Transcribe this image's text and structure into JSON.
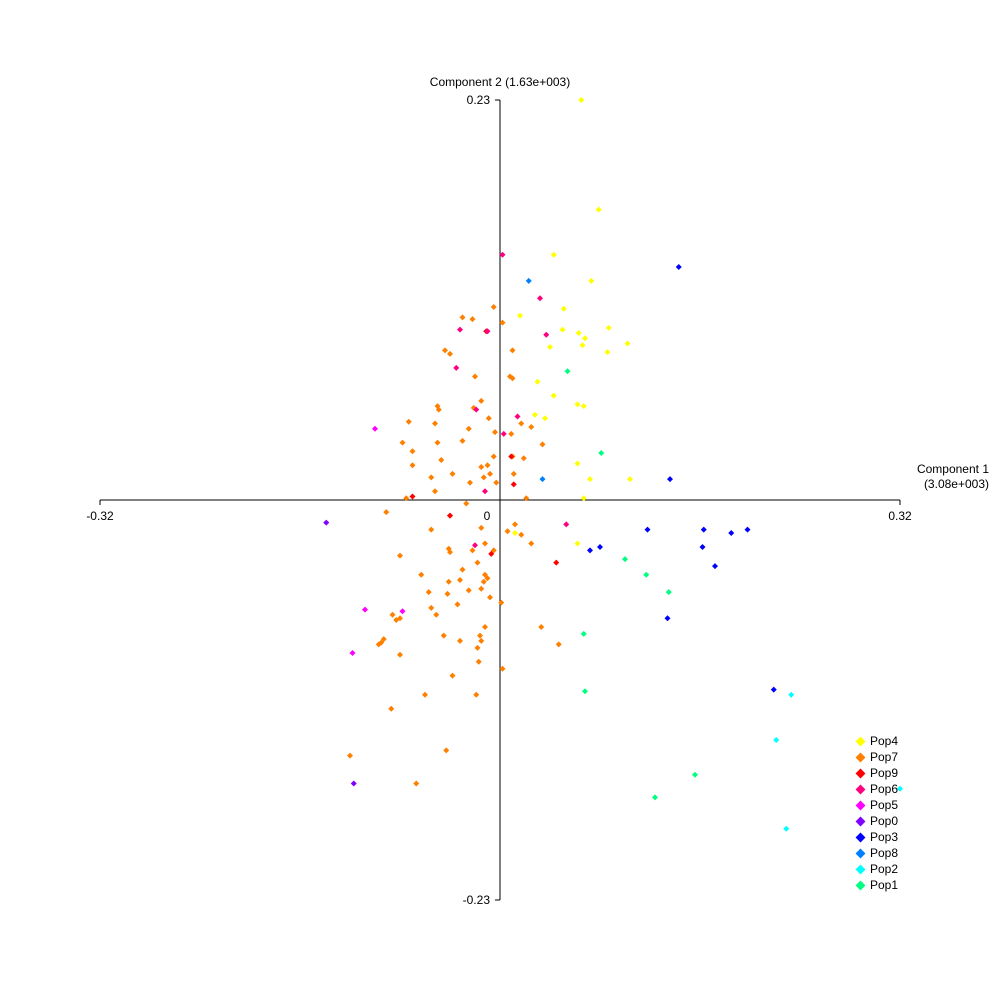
{
  "chart_data": {
    "type": "scatter",
    "xlabel": "Component 1",
    "xlabel_sub": "(3.08e+003)",
    "ylabel": "Component 2 (1.63e+003)",
    "xlim": [
      -0.32,
      0.32
    ],
    "ylim": [
      -0.23,
      0.23
    ],
    "ticks": {
      "x_min": "-0.32",
      "x_max": "0.32",
      "y_max": "0.23",
      "y_min": "-0.23",
      "origin": "0"
    },
    "legend_position": "bottom-right",
    "series": [
      {
        "name": "Pop4",
        "color": "#ffff00",
        "points": [
          [
            0.065,
            0.23
          ],
          [
            0.079,
            0.167
          ],
          [
            0.043,
            0.141
          ],
          [
            0.073,
            0.126
          ],
          [
            0.051,
            0.11
          ],
          [
            0.016,
            0.106
          ],
          [
            0.05,
            0.098
          ],
          [
            0.063,
            0.096
          ],
          [
            0.087,
            0.099
          ],
          [
            0.102,
            0.09
          ],
          [
            0.068,
            0.093
          ],
          [
            0.066,
            0.089
          ],
          [
            0.04,
            0.088
          ],
          [
            0.086,
            0.085
          ],
          [
            0.03,
            0.068
          ],
          [
            0.043,
            0.06
          ],
          [
            0.062,
            0.055
          ],
          [
            0.067,
            0.054
          ],
          [
            0.028,
            0.049
          ],
          [
            0.036,
            0.047
          ],
          [
            0.062,
            0.021
          ],
          [
            0.072,
            0.012
          ],
          [
            0.104,
            0.012
          ],
          [
            0.067,
            0.001
          ],
          [
            0.012,
            -0.019
          ],
          [
            0.062,
            -0.025
          ]
        ]
      },
      {
        "name": "Pop7",
        "color": "#ff8000",
        "points": [
          [
            -0.03,
            0.105
          ],
          [
            -0.022,
            0.104
          ],
          [
            -0.005,
            0.111
          ],
          [
            -0.044,
            0.086
          ],
          [
            -0.04,
            0.084
          ],
          [
            0.002,
            0.102
          ],
          [
            0.01,
            0.086
          ],
          [
            0.008,
            0.071
          ],
          [
            0.01,
            0.07
          ],
          [
            -0.02,
            0.071
          ],
          [
            -0.015,
            0.057
          ],
          [
            -0.05,
            0.054
          ],
          [
            -0.049,
            0.052
          ],
          [
            -0.009,
            0.047
          ],
          [
            -0.073,
            0.045
          ],
          [
            -0.052,
            0.044
          ],
          [
            -0.025,
            0.041
          ],
          [
            0.017,
            0.044
          ],
          [
            0.025,
            0.042
          ],
          [
            -0.004,
            0.039
          ],
          [
            0.009,
            0.038
          ],
          [
            -0.078,
            0.033
          ],
          [
            -0.05,
            0.033
          ],
          [
            -0.03,
            0.034
          ],
          [
            0.034,
            0.032
          ],
          [
            -0.07,
            0.028
          ],
          [
            -0.005,
            0.025
          ],
          [
            -0.01,
            0.02
          ],
          [
            0.01,
            0.025
          ],
          [
            0.019,
            0.024
          ],
          [
            -0.047,
            0.023
          ],
          [
            -0.07,
            0.02
          ],
          [
            -0.015,
            0.019
          ],
          [
            -0.008,
            0.015
          ],
          [
            -0.013,
            0.013
          ],
          [
            -0.055,
            0.013
          ],
          [
            -0.038,
            0.015
          ],
          [
            0.011,
            0.015
          ],
          [
            -0.024,
            0.01
          ],
          [
            -0.052,
            0.005
          ],
          [
            -0.003,
            0.01
          ],
          [
            -0.075,
            0.001
          ],
          [
            -0.027,
            -0.002
          ],
          [
            0.021,
            0.001
          ],
          [
            -0.091,
            -0.007
          ],
          [
            -0.04,
            -0.009
          ],
          [
            0.012,
            -0.014
          ],
          [
            -0.055,
            -0.017
          ],
          [
            -0.015,
            -0.016
          ],
          [
            -0.04,
            -0.03
          ],
          [
            0.006,
            -0.018
          ],
          [
            -0.012,
            -0.025
          ],
          [
            -0.041,
            -0.028
          ],
          [
            -0.022,
            -0.029
          ],
          [
            -0.005,
            -0.029
          ],
          [
            0.017,
            -0.02
          ],
          [
            0.025,
            -0.025
          ],
          [
            -0.018,
            -0.036
          ],
          [
            -0.03,
            -0.04
          ],
          [
            -0.08,
            -0.032
          ],
          [
            -0.063,
            -0.043
          ],
          [
            -0.057,
            -0.053
          ],
          [
            -0.012,
            -0.043
          ],
          [
            -0.032,
            -0.046
          ],
          [
            -0.01,
            -0.045
          ],
          [
            -0.041,
            -0.047
          ],
          [
            -0.013,
            -0.047
          ],
          [
            -0.025,
            -0.052
          ],
          [
            -0.042,
            -0.054
          ],
          [
            -0.015,
            -0.051
          ],
          [
            -0.008,
            -0.056
          ],
          [
            0.001,
            -0.059
          ],
          [
            -0.034,
            -0.06
          ],
          [
            -0.055,
            -0.062
          ],
          [
            -0.051,
            -0.066
          ],
          [
            -0.086,
            -0.066
          ],
          [
            -0.08,
            -0.068
          ],
          [
            -0.012,
            -0.073
          ],
          [
            -0.016,
            -0.078
          ],
          [
            -0.083,
            -0.069
          ],
          [
            -0.045,
            -0.078
          ],
          [
            -0.093,
            -0.08
          ],
          [
            -0.097,
            -0.083
          ],
          [
            -0.095,
            -0.082
          ],
          [
            -0.015,
            -0.081
          ],
          [
            -0.032,
            -0.081
          ],
          [
            -0.018,
            -0.085
          ],
          [
            -0.017,
            -0.093
          ],
          [
            0.033,
            -0.073
          ],
          [
            0.047,
            -0.083
          ],
          [
            -0.08,
            -0.089
          ],
          [
            0.002,
            -0.097
          ],
          [
            -0.038,
            -0.101
          ],
          [
            -0.06,
            -0.112
          ],
          [
            -0.019,
            -0.112
          ],
          [
            -0.087,
            -0.12
          ],
          [
            -0.12,
            -0.147
          ],
          [
            -0.043,
            -0.144
          ],
          [
            -0.067,
            -0.163
          ],
          [
            -0.021,
            0.053
          ]
        ]
      },
      {
        "name": "Pop9",
        "color": "#ff0000",
        "points": [
          [
            -0.011,
            0.097
          ],
          [
            0.009,
            0.025
          ],
          [
            0.011,
            0.009
          ],
          [
            -0.07,
            0.002
          ],
          [
            -0.04,
            -0.009
          ],
          [
            -0.007,
            -0.031
          ],
          [
            0.045,
            -0.036
          ]
        ]
      },
      {
        "name": "Pop6",
        "color": "#ff0080",
        "points": [
          [
            0.002,
            0.141
          ],
          [
            0.032,
            0.116
          ],
          [
            -0.032,
            0.098
          ],
          [
            -0.01,
            0.097
          ],
          [
            0.037,
            0.095
          ],
          [
            -0.035,
            0.076
          ],
          [
            -0.019,
            0.052
          ],
          [
            0.014,
            0.048
          ],
          [
            0.003,
            0.038
          ],
          [
            -0.012,
            0.005
          ],
          [
            0.053,
            -0.014
          ],
          [
            -0.02,
            -0.026
          ]
        ]
      },
      {
        "name": "Pop5",
        "color": "#ff00ff",
        "points": [
          [
            -0.1,
            0.041
          ],
          [
            -0.108,
            -0.063
          ],
          [
            -0.078,
            -0.064
          ],
          [
            -0.118,
            -0.088
          ]
        ]
      },
      {
        "name": "Pop0",
        "color": "#8000ff",
        "points": [
          [
            -0.139,
            -0.013
          ],
          [
            -0.117,
            -0.163
          ]
        ]
      },
      {
        "name": "Pop3",
        "color": "#0000ff",
        "points": [
          [
            0.143,
            0.134
          ],
          [
            0.136,
            0.012
          ],
          [
            0.118,
            -0.017
          ],
          [
            0.163,
            -0.017
          ],
          [
            0.198,
            -0.017
          ],
          [
            0.185,
            -0.019
          ],
          [
            0.162,
            -0.027
          ],
          [
            0.08,
            -0.027
          ],
          [
            0.072,
            -0.029
          ],
          [
            0.172,
            -0.038
          ],
          [
            0.134,
            -0.068
          ],
          [
            0.219,
            -0.109
          ]
        ]
      },
      {
        "name": "Pop8",
        "color": "#0080ff",
        "points": [
          [
            0.023,
            0.126
          ],
          [
            0.034,
            0.012
          ]
        ]
      },
      {
        "name": "Pop2",
        "color": "#00ffff",
        "points": [
          [
            0.233,
            -0.112
          ],
          [
            0.221,
            -0.138
          ],
          [
            0.32,
            -0.166
          ],
          [
            0.229,
            -0.189
          ]
        ]
      },
      {
        "name": "Pop1",
        "color": "#00ff80",
        "points": [
          [
            0.054,
            0.074
          ],
          [
            0.081,
            0.027
          ],
          [
            0.1,
            -0.034
          ],
          [
            0.117,
            -0.043
          ],
          [
            0.135,
            -0.053
          ],
          [
            0.067,
            -0.077
          ],
          [
            0.068,
            -0.11
          ],
          [
            0.156,
            -0.158
          ],
          [
            0.124,
            -0.171
          ]
        ]
      }
    ]
  }
}
